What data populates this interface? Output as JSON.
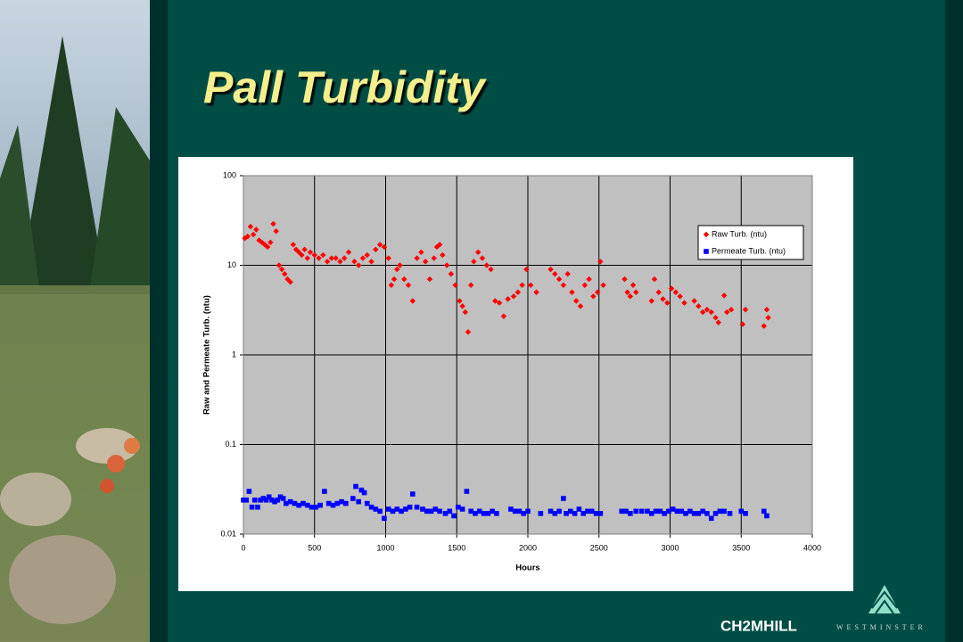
{
  "chart_data": {
    "type": "scatter",
    "title": "Pall Turbidity",
    "x_label": "Hours",
    "y_label": "Raw and Permeate Turb. (ntu)",
    "xlim": [
      0,
      4000
    ],
    "xticks": [
      0,
      500,
      1000,
      1500,
      2000,
      2500,
      3000,
      3500,
      4000
    ],
    "ylim": [
      0.01,
      100
    ],
    "yticks": [
      0.01,
      0.1,
      1,
      10,
      100
    ],
    "log_y": true,
    "grid": true,
    "legend": "upper right",
    "series": [
      {
        "name": "Raw Turb. (ntu)",
        "color": "#ff0000",
        "marker": "diamond",
        "x": [
          10,
          30,
          50,
          70,
          90,
          110,
          130,
          150,
          170,
          190,
          210,
          230,
          250,
          270,
          290,
          310,
          330,
          350,
          370,
          390,
          410,
          430,
          450,
          470,
          500,
          530,
          560,
          590,
          620,
          650,
          680,
          710,
          740,
          780,
          810,
          840,
          870,
          900,
          930,
          960,
          990,
          1020,
          1040,
          1060,
          1080,
          1100,
          1130,
          1160,
          1190,
          1220,
          1250,
          1280,
          1310,
          1340,
          1360,
          1380,
          1400,
          1430,
          1460,
          1490,
          1520,
          1540,
          1560,
          1580,
          1600,
          1620,
          1650,
          1680,
          1710,
          1740,
          1770,
          1800,
          1830,
          1860,
          1900,
          1930,
          1960,
          1990,
          2020,
          2060,
          2160,
          2190,
          2220,
          2250,
          2280,
          2310,
          2340,
          2370,
          2400,
          2430,
          2460,
          2490,
          2510,
          2530,
          2680,
          2700,
          2720,
          2740,
          2760,
          2870,
          2890,
          2920,
          2950,
          2980,
          3010,
          3040,
          3070,
          3100,
          3170,
          3200,
          3230,
          3260,
          3290,
          3320,
          3340,
          3380,
          3400,
          3430,
          3510,
          3530,
          3660,
          3680,
          3690
        ],
        "values": [
          20,
          21,
          27,
          22,
          25,
          19,
          18,
          17,
          16,
          18,
          29,
          24,
          10,
          9,
          8,
          7,
          6.5,
          17,
          15,
          14,
          13,
          15,
          12,
          14,
          13,
          12,
          13,
          11,
          12,
          12,
          11,
          12,
          14,
          11,
          10,
          12,
          13,
          11,
          15,
          17,
          16,
          12,
          6,
          7,
          9,
          10,
          7,
          6,
          4,
          12,
          14,
          11,
          7,
          12,
          16,
          17,
          13,
          10,
          8,
          6,
          4,
          3.5,
          3,
          1.8,
          6,
          11,
          14,
          12,
          10,
          9,
          4,
          3.8,
          2.7,
          4.2,
          4.5,
          5,
          6,
          9,
          6,
          5,
          9,
          8,
          7,
          6,
          8,
          5,
          4,
          3.5,
          6,
          7,
          4.5,
          5,
          11,
          6,
          7,
          5,
          4.5,
          6,
          5,
          4,
          7,
          5,
          4.2,
          3.8,
          5.5,
          5,
          4.5,
          3.8,
          4,
          3.5,
          3,
          3.2,
          3,
          2.6,
          2.3,
          4.6,
          3,
          3.2,
          2.2,
          3.2,
          2.1,
          3.2,
          2.6
        ]
      },
      {
        "name": "Permeate Turb. (ntu)",
        "color": "#0000ff",
        "marker": "square",
        "x": [
          0,
          20,
          40,
          60,
          80,
          100,
          120,
          140,
          160,
          180,
          200,
          220,
          240,
          260,
          280,
          300,
          330,
          360,
          390,
          420,
          450,
          480,
          510,
          540,
          570,
          600,
          630,
          660,
          690,
          720,
          770,
          790,
          810,
          830,
          850,
          870,
          900,
          930,
          960,
          990,
          1020,
          1050,
          1080,
          1110,
          1140,
          1170,
          1190,
          1220,
          1260,
          1290,
          1320,
          1350,
          1380,
          1420,
          1450,
          1480,
          1510,
          1540,
          1570,
          1600,
          1630,
          1660,
          1690,
          1720,
          1750,
          1780,
          1880,
          1910,
          1940,
          1970,
          2000,
          2090,
          2160,
          2190,
          2220,
          2250,
          2270,
          2300,
          2330,
          2360,
          2390,
          2420,
          2450,
          2480,
          2510,
          2660,
          2690,
          2720,
          2760,
          2800,
          2840,
          2870,
          2900,
          2930,
          2960,
          2990,
          3020,
          3050,
          3080,
          3110,
          3140,
          3170,
          3200,
          3230,
          3260,
          3290,
          3320,
          3350,
          3380,
          3420,
          3500,
          3530,
          3660,
          3680
        ],
        "values": [
          0.024,
          0.024,
          0.03,
          0.02,
          0.024,
          0.02,
          0.024,
          0.025,
          0.024,
          0.026,
          0.024,
          0.023,
          0.024,
          0.026,
          0.025,
          0.022,
          0.023,
          0.022,
          0.021,
          0.022,
          0.021,
          0.02,
          0.02,
          0.021,
          0.03,
          0.022,
          0.021,
          0.022,
          0.023,
          0.022,
          0.025,
          0.034,
          0.023,
          0.031,
          0.029,
          0.022,
          0.02,
          0.019,
          0.018,
          0.015,
          0.019,
          0.018,
          0.019,
          0.018,
          0.019,
          0.02,
          0.028,
          0.02,
          0.019,
          0.018,
          0.018,
          0.019,
          0.018,
          0.017,
          0.018,
          0.016,
          0.02,
          0.019,
          0.03,
          0.018,
          0.017,
          0.018,
          0.017,
          0.017,
          0.018,
          0.017,
          0.019,
          0.018,
          0.018,
          0.017,
          0.018,
          0.017,
          0.018,
          0.017,
          0.018,
          0.025,
          0.017,
          0.018,
          0.017,
          0.019,
          0.017,
          0.018,
          0.018,
          0.017,
          0.017,
          0.018,
          0.018,
          0.017,
          0.018,
          0.018,
          0.018,
          0.017,
          0.018,
          0.018,
          0.017,
          0.018,
          0.019,
          0.018,
          0.018,
          0.017,
          0.018,
          0.017,
          0.017,
          0.018,
          0.017,
          0.015,
          0.017,
          0.018,
          0.018,
          0.017,
          0.018,
          0.017,
          0.018,
          0.016
        ]
      }
    ]
  },
  "footer": {
    "logo": "CH2MHILL",
    "sublogo": "WESTMINSTER"
  }
}
